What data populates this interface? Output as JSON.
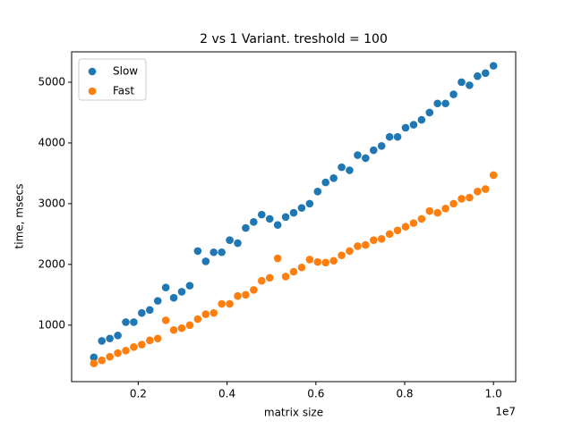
{
  "chart_data": {
    "type": "scatter",
    "title": "2 vs 1 Variant. treshold = 100",
    "x_label": "matrix size",
    "y_label": "time, msecs",
    "x_offset_label": "1e7",
    "x": [
      0.1,
      0.118,
      0.136,
      0.154,
      0.172,
      0.19,
      0.208,
      0.226,
      0.244,
      0.262,
      0.28,
      0.298,
      0.316,
      0.334,
      0.352,
      0.37,
      0.388,
      0.406,
      0.424,
      0.442,
      0.46,
      0.478,
      0.496,
      0.514,
      0.532,
      0.55,
      0.568,
      0.586,
      0.604,
      0.622,
      0.64,
      0.658,
      0.676,
      0.694,
      0.712,
      0.73,
      0.748,
      0.766,
      0.784,
      0.802,
      0.82,
      0.838,
      0.856,
      0.874,
      0.892,
      0.91,
      0.928,
      0.946,
      0.964,
      0.982,
      1.0
    ],
    "series": [
      {
        "name": "Slow",
        "color": "#1f77b4",
        "values": [
          470,
          740,
          780,
          830,
          1050,
          1050,
          1200,
          1250,
          1400,
          1620,
          1450,
          1550,
          1650,
          2220,
          2050,
          2200,
          2200,
          2400,
          2350,
          2600,
          2700,
          2820,
          2750,
          2650,
          2780,
          2850,
          2930,
          3000,
          3200,
          3350,
          3420,
          3600,
          3550,
          3800,
          3750,
          3880,
          3950,
          4100,
          4100,
          4250,
          4300,
          4380,
          4500,
          4650,
          4650,
          4800,
          5000,
          4950,
          5100,
          5150,
          5270
        ]
      },
      {
        "name": "Fast",
        "color": "#ff7f0e",
        "values": [
          370,
          420,
          480,
          540,
          580,
          640,
          680,
          750,
          780,
          1080,
          920,
          950,
          1000,
          1100,
          1180,
          1200,
          1350,
          1350,
          1480,
          1500,
          1580,
          1730,
          1780,
          2100,
          1800,
          1880,
          1950,
          2080,
          2040,
          2030,
          2060,
          2150,
          2220,
          2300,
          2320,
          2400,
          2420,
          2500,
          2560,
          2620,
          2680,
          2750,
          2880,
          2850,
          2920,
          3000,
          3080,
          3100,
          3200,
          3240,
          3470
        ]
      }
    ],
    "xlim": [
      0.05,
      1.05
    ],
    "ylim": [
      70,
      5500
    ],
    "xticks": [
      0.2,
      0.4,
      0.6,
      0.8,
      {
        "value": 1,
        "label": "1.0"
      }
    ],
    "yticks": [
      1000,
      2000,
      3000,
      4000,
      5000
    ],
    "legend": "upper left"
  }
}
